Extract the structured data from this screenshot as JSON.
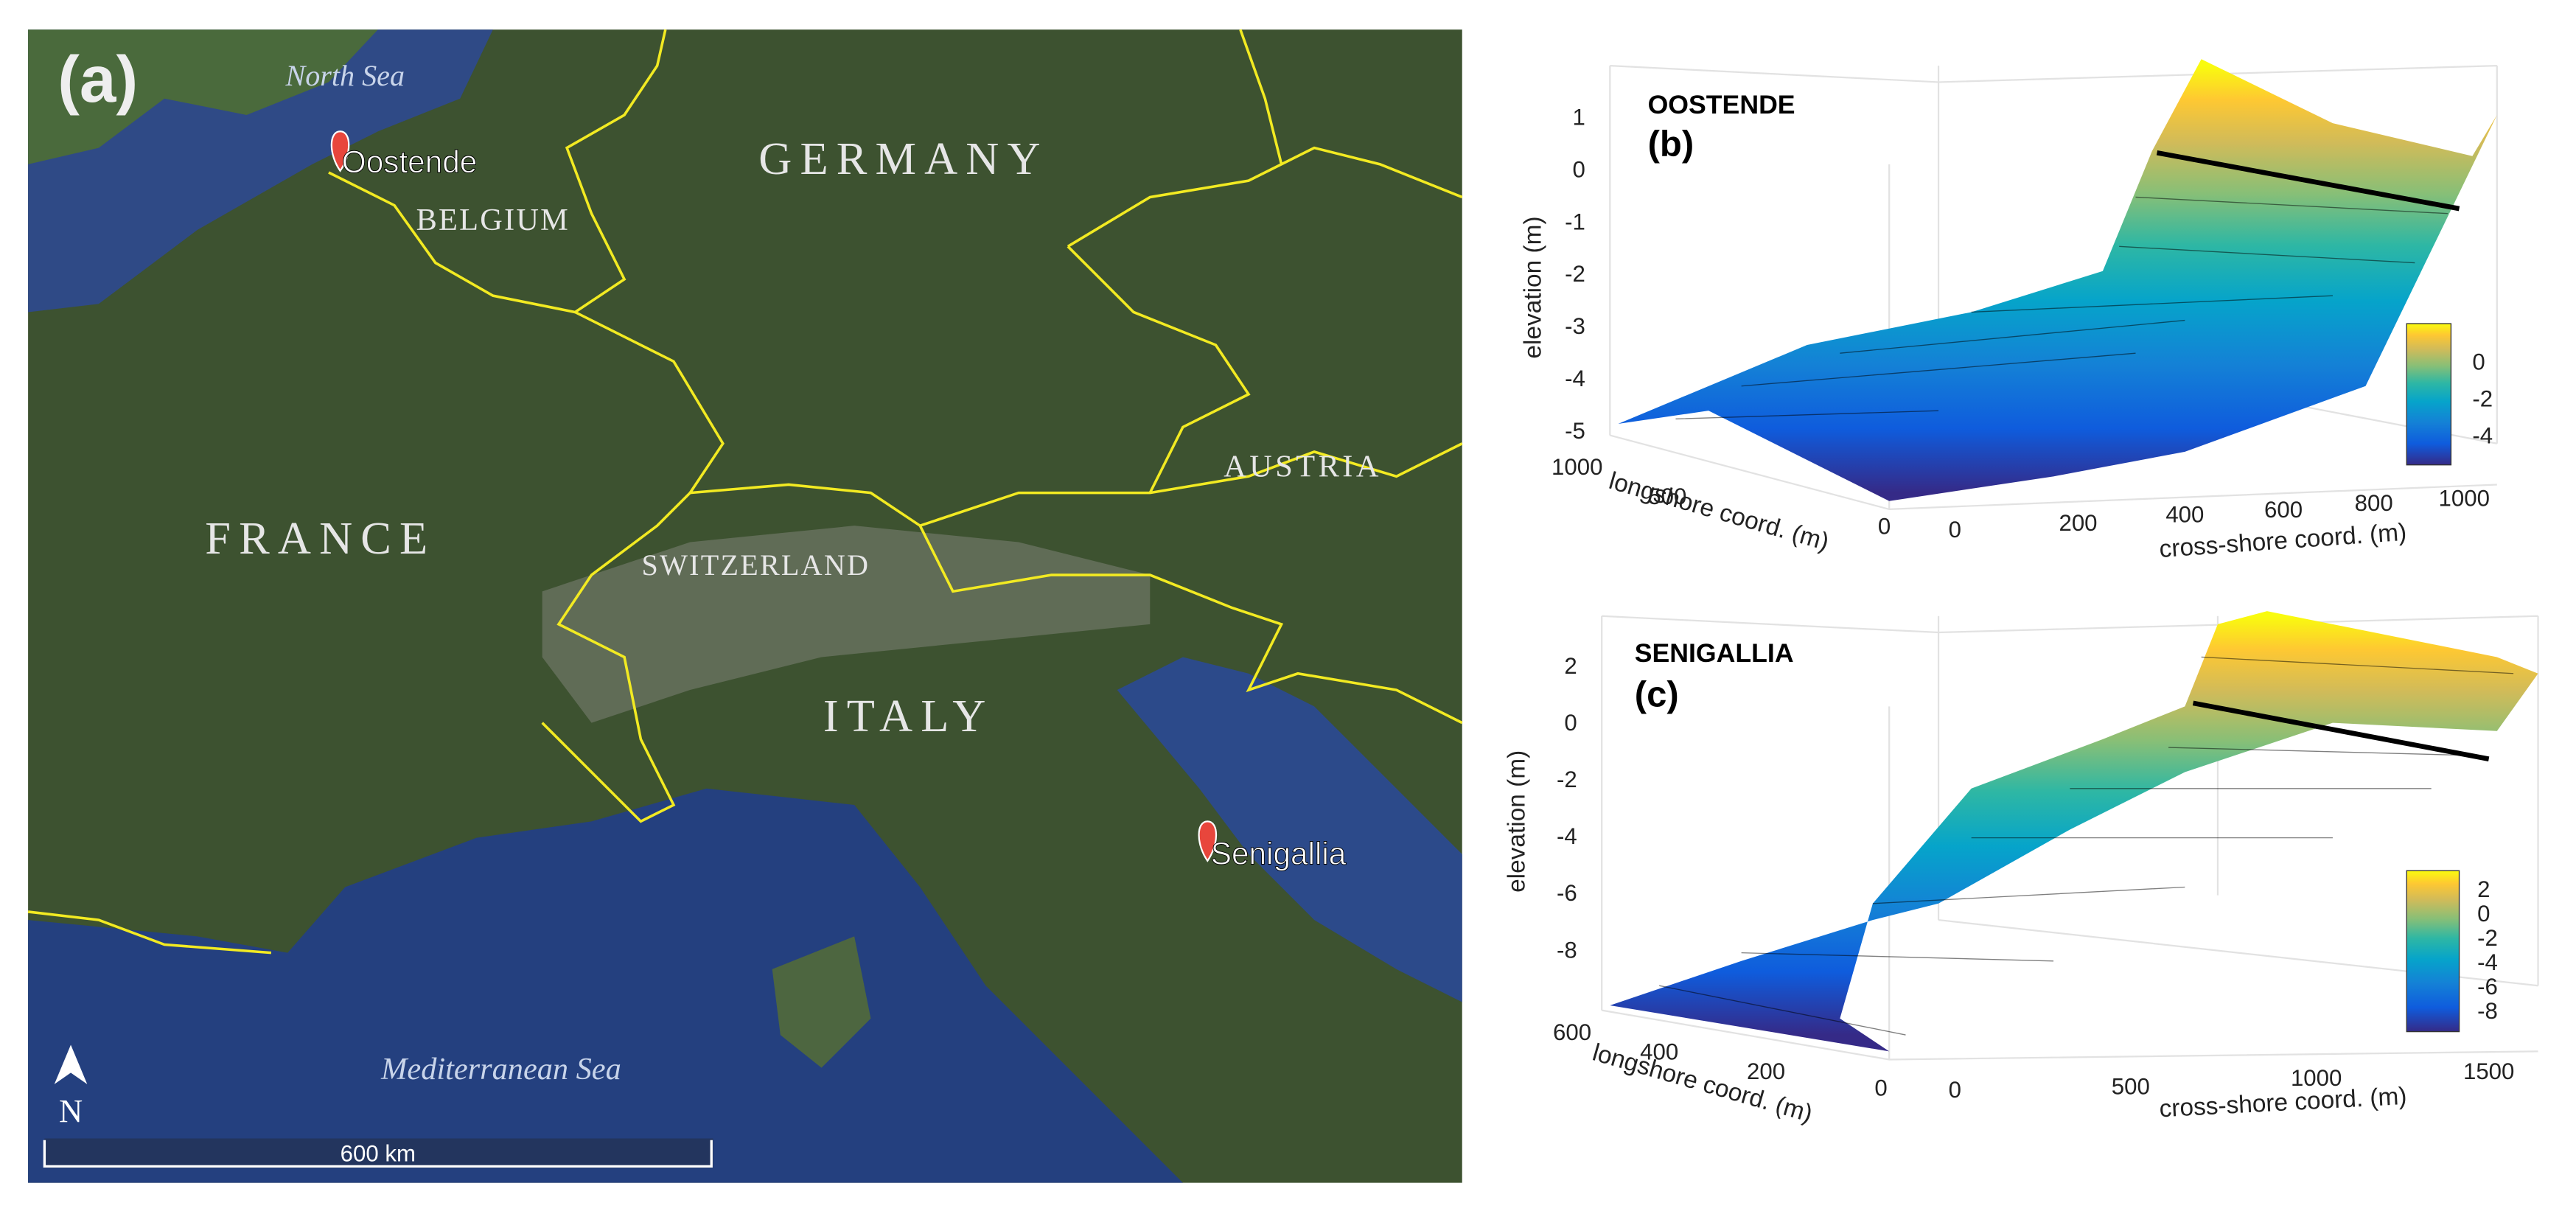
{
  "map": {
    "panel_label": "(a)",
    "seas": [
      "North Sea",
      "Mediterranean Sea"
    ],
    "countries": [
      "GERMANY",
      "BELGIUM",
      "FRANCE",
      "SWITZERLAND",
      "AUSTRIA",
      "ITALY"
    ],
    "sites": [
      "Oostende",
      "Senigallia"
    ],
    "north": "N",
    "scale": "600 km"
  },
  "panels": [
    {
      "site": "OOSTENDE",
      "label": "(b)",
      "z_label": "elevation (m)",
      "z_ticks": [
        1,
        0,
        -1,
        -2,
        -3,
        -4,
        -5
      ],
      "longshore_label": "longshore coord. (m)",
      "longshore_ticks": [
        1000,
        500,
        0
      ],
      "cross_label": "cross-shore coord. (m)",
      "cross_ticks": [
        0,
        200,
        400,
        600,
        800,
        1000
      ],
      "colorbar_ticks": [
        0,
        -2,
        -4
      ]
    },
    {
      "site": "SENIGALLIA",
      "label": "(c)",
      "z_label": "elevation (m)",
      "z_ticks": [
        2,
        0,
        -2,
        -4,
        -6,
        -8
      ],
      "longshore_label": "longshore coord. (m)",
      "longshore_ticks": [
        600,
        400,
        200,
        0
      ],
      "cross_label": "cross-shore coord. (m)",
      "cross_ticks": [
        0,
        500,
        1000,
        1500
      ],
      "colorbar_ticks": [
        2,
        0,
        -2,
        -4,
        -6,
        -8
      ]
    }
  ]
}
